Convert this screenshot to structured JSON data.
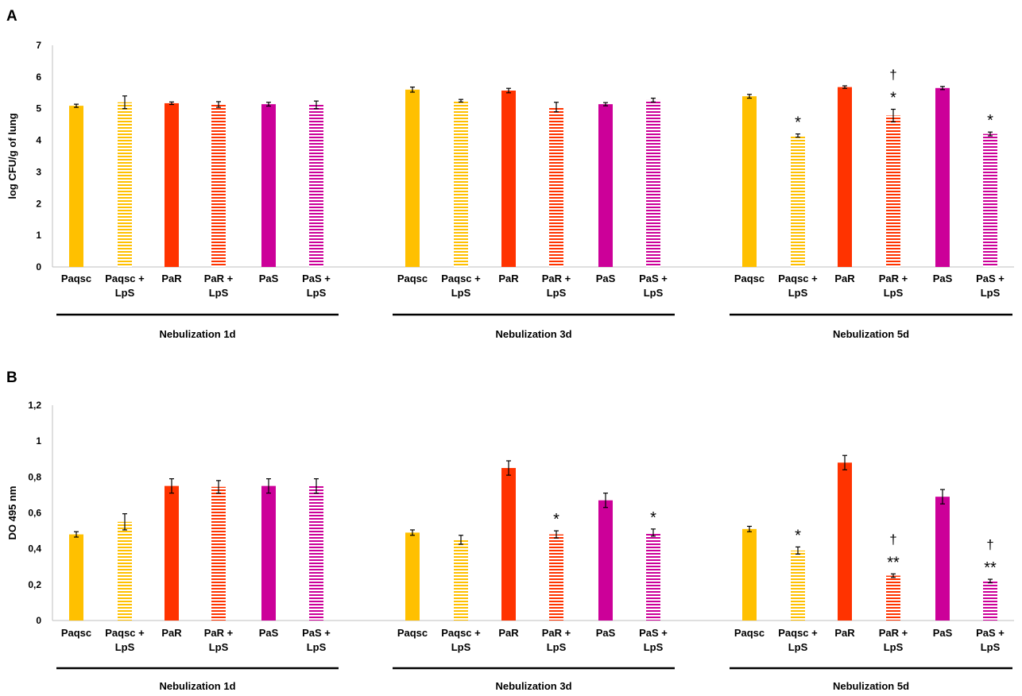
{
  "chart_data": [
    {
      "type": "bar",
      "panel_label": "A",
      "title": "",
      "ylabel": "log CFU/g of lung",
      "ylim": [
        0,
        7
      ],
      "yticks": [
        "0",
        "1",
        "2",
        "3",
        "4",
        "5",
        "6",
        "7"
      ],
      "grid": false,
      "groups": [
        {
          "name": "Nebulization 1d",
          "bars": [
            {
              "label": "Paqsc",
              "value": 5.09,
              "error": 0.05,
              "series": "Paqsc",
              "annotation": ""
            },
            {
              "label": "Paqsc + LpS",
              "value": 5.2,
              "error": 0.2,
              "series": "Paqsc + LpS",
              "annotation": ""
            },
            {
              "label": "PaR",
              "value": 5.17,
              "error": 0.04,
              "series": "PaR",
              "annotation": ""
            },
            {
              "label": "PaR + LpS",
              "value": 5.13,
              "error": 0.09,
              "series": "PaR + LpS",
              "annotation": ""
            },
            {
              "label": "PaS",
              "value": 5.14,
              "error": 0.06,
              "series": "PaS",
              "annotation": ""
            },
            {
              "label": "PaS + LpS",
              "value": 5.12,
              "error": 0.12,
              "series": "PaS + LpS",
              "annotation": ""
            }
          ]
        },
        {
          "name": "Nebulization 3d",
          "bars": [
            {
              "label": "Paqsc",
              "value": 5.6,
              "error": 0.08,
              "series": "Paqsc",
              "annotation": ""
            },
            {
              "label": "Paqsc + LpS",
              "value": 5.25,
              "error": 0.04,
              "series": "Paqsc + LpS",
              "annotation": ""
            },
            {
              "label": "PaR",
              "value": 5.57,
              "error": 0.07,
              "series": "PaR",
              "annotation": ""
            },
            {
              "label": "PaR + LpS",
              "value": 5.05,
              "error": 0.15,
              "series": "PaR + LpS",
              "annotation": ""
            },
            {
              "label": "PaS",
              "value": 5.14,
              "error": 0.05,
              "series": "PaS",
              "annotation": ""
            },
            {
              "label": "PaS + LpS",
              "value": 5.27,
              "error": 0.06,
              "series": "PaS + LpS",
              "annotation": ""
            }
          ]
        },
        {
          "name": "Nebulization 5d",
          "bars": [
            {
              "label": "Paqsc",
              "value": 5.39,
              "error": 0.06,
              "series": "Paqsc",
              "annotation": ""
            },
            {
              "label": "Paqsc + LpS",
              "value": 4.15,
              "error": 0.05,
              "series": "Paqsc + LpS",
              "annotation": "*"
            },
            {
              "label": "PaR",
              "value": 5.68,
              "error": 0.04,
              "series": "PaR",
              "annotation": ""
            },
            {
              "label": "PaR + LpS",
              "value": 4.78,
              "error": 0.2,
              "series": "PaR + LpS",
              "annotation": "*",
              "annotation2": "†"
            },
            {
              "label": "PaS",
              "value": 5.65,
              "error": 0.05,
              "series": "PaS",
              "annotation": ""
            },
            {
              "label": "PaS + LpS",
              "value": 4.2,
              "error": 0.06,
              "series": "PaS + LpS",
              "annotation": "*"
            }
          ]
        }
      ]
    },
    {
      "type": "bar",
      "panel_label": "B",
      "title": "",
      "ylabel": "DO 495 nm",
      "ylim": [
        0,
        1.2
      ],
      "yticks": [
        "0",
        "0,2",
        "0,4",
        "0,6",
        "0,8",
        "1",
        "1,2"
      ],
      "grid": false,
      "groups": [
        {
          "name": "Nebulization 1d",
          "bars": [
            {
              "label": "Paqsc",
              "value": 0.48,
              "error": 0.015,
              "series": "Paqsc",
              "annotation": ""
            },
            {
              "label": "Paqsc + LpS",
              "value": 0.55,
              "error": 0.045,
              "series": "Paqsc + LpS",
              "annotation": ""
            },
            {
              "label": "PaR",
              "value": 0.75,
              "error": 0.04,
              "series": "PaR",
              "annotation": ""
            },
            {
              "label": "PaR + LpS",
              "value": 0.745,
              "error": 0.035,
              "series": "PaR + LpS",
              "annotation": ""
            },
            {
              "label": "PaS",
              "value": 0.75,
              "error": 0.04,
              "series": "PaS",
              "annotation": ""
            },
            {
              "label": "PaS + LpS",
              "value": 0.75,
              "error": 0.04,
              "series": "PaS + LpS",
              "annotation": ""
            }
          ]
        },
        {
          "name": "Nebulization 3d",
          "bars": [
            {
              "label": "Paqsc",
              "value": 0.49,
              "error": 0.015,
              "series": "Paqsc",
              "annotation": ""
            },
            {
              "label": "Paqsc + LpS",
              "value": 0.45,
              "error": 0.025,
              "series": "Paqsc + LpS",
              "annotation": ""
            },
            {
              "label": "PaR",
              "value": 0.85,
              "error": 0.04,
              "series": "PaR",
              "annotation": ""
            },
            {
              "label": "PaR + LpS",
              "value": 0.48,
              "error": 0.02,
              "series": "PaR + LpS",
              "annotation": "*"
            },
            {
              "label": "PaS",
              "value": 0.67,
              "error": 0.04,
              "series": "PaS",
              "annotation": ""
            },
            {
              "label": "PaS + LpS",
              "value": 0.49,
              "error": 0.02,
              "series": "PaS + LpS",
              "annotation": "*"
            }
          ]
        },
        {
          "name": "Nebulization 5d",
          "bars": [
            {
              "label": "Paqsc",
              "value": 0.51,
              "error": 0.015,
              "series": "Paqsc",
              "annotation": ""
            },
            {
              "label": "Paqsc + LpS",
              "value": 0.39,
              "error": 0.02,
              "series": "Paqsc + LpS",
              "annotation": "*"
            },
            {
              "label": "PaR",
              "value": 0.88,
              "error": 0.04,
              "series": "PaR",
              "annotation": ""
            },
            {
              "label": "PaR + LpS",
              "value": 0.25,
              "error": 0.01,
              "series": "PaR + LpS",
              "annotation": "**",
              "annotation2": "†"
            },
            {
              "label": "PaS",
              "value": 0.69,
              "error": 0.04,
              "series": "PaS",
              "annotation": ""
            },
            {
              "label": "PaS + LpS",
              "value": 0.22,
              "error": 0.01,
              "series": "PaS + LpS",
              "annotation": "**",
              "annotation2": "†"
            }
          ]
        }
      ]
    }
  ],
  "series_styles": {
    "Paqsc": {
      "color": "#FFC000",
      "pattern": "solid"
    },
    "Paqsc + LpS": {
      "color": "#FFC000",
      "pattern": "stripes"
    },
    "PaR": {
      "color": "#FF3300",
      "pattern": "solid"
    },
    "PaR + LpS": {
      "color": "#FF3300",
      "pattern": "stripes"
    },
    "PaS": {
      "color": "#CC0099",
      "pattern": "solid"
    },
    "PaS + LpS": {
      "color": "#CC0099",
      "pattern": "stripes"
    }
  }
}
